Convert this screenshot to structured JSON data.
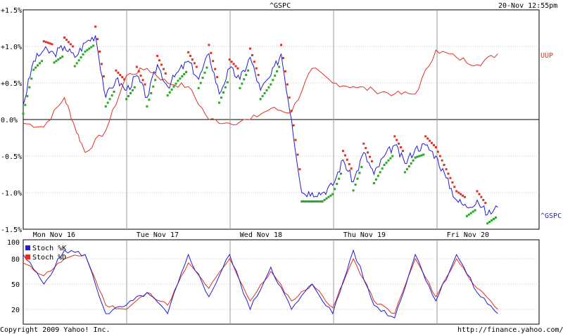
{
  "header": {
    "symbol": "^GSPC",
    "timestamp": "20-Nov 12:55pm"
  },
  "footer": {
    "copyright": "Copyright 2009 Yahoo! Inc.",
    "url": "http://finance.yahoo.com/"
  },
  "colors": {
    "gspc": "#1f1fcf",
    "uup": "#e03020",
    "psar_up": "#22aa22",
    "psar_down": "#e03020",
    "grid": "#999999",
    "zero": "#000000"
  },
  "chart_data": [
    {
      "type": "line",
      "y_unit": "%",
      "x_categories": [
        "Mon Nov 16",
        "Tue Nov 17",
        "Wed Nov 18",
        "Thu Nov 19",
        "Fri Nov 20"
      ],
      "y_ticks": [
        "+1.5%",
        "+1.0%",
        "+0.5%",
        "0.0%",
        "-0.5%",
        "-1.0%",
        "-1.5%"
      ],
      "ylim": [
        -1.5,
        1.5
      ],
      "series_labels": {
        "gspc": "^GSPC",
        "uup": "UUP"
      },
      "series": [
        {
          "name": "^GSPC",
          "x": [
            0.0,
            0.1,
            0.2,
            0.3,
            0.4,
            0.5,
            0.6,
            0.7,
            0.8,
            0.9,
            1.0,
            1.1,
            1.2,
            1.3,
            1.4,
            1.5,
            1.6,
            1.7,
            1.8,
            1.9,
            2.0,
            2.1,
            2.2,
            2.3,
            2.4,
            2.5,
            2.6,
            2.7,
            2.8,
            2.9,
            3.0,
            3.1,
            3.2,
            3.3,
            3.4,
            3.5,
            3.6,
            3.7,
            3.8,
            3.9,
            4.0,
            4.1,
            4.2,
            4.3,
            4.4,
            4.5,
            4.6
          ],
          "values": [
            0.2,
            0.8,
            0.95,
            0.9,
            1.0,
            0.85,
            1.05,
            1.15,
            0.3,
            0.55,
            0.4,
            0.6,
            0.3,
            0.75,
            0.45,
            0.65,
            0.8,
            0.55,
            0.9,
            0.35,
            0.7,
            0.55,
            0.85,
            0.4,
            0.6,
            0.9,
            0.0,
            -1.0,
            -1.0,
            -1.0,
            -0.9,
            -0.55,
            -0.85,
            -0.45,
            -0.75,
            -0.5,
            -0.35,
            -0.6,
            -0.4,
            -0.35,
            -0.5,
            -0.8,
            -1.1,
            -1.2,
            -1.1,
            -1.3,
            -1.2
          ]
        },
        {
          "name": "UUP",
          "x": [
            0.0,
            0.2,
            0.4,
            0.5,
            0.6,
            0.8,
            1.0,
            1.2,
            1.4,
            1.6,
            1.8,
            2.0,
            2.2,
            2.4,
            2.6,
            2.8,
            3.0,
            3.2,
            3.4,
            3.6,
            3.8,
            4.0,
            4.2,
            4.4,
            4.6
          ],
          "values": [
            -0.05,
            -0.1,
            0.3,
            -0.1,
            -0.45,
            -0.15,
            0.6,
            0.7,
            0.5,
            0.45,
            0.0,
            -0.05,
            0.0,
            0.15,
            0.1,
            0.7,
            0.5,
            0.45,
            0.4,
            0.35,
            0.35,
            0.95,
            0.85,
            0.75,
            0.9
          ]
        }
      ],
      "grid": true
    },
    {
      "type": "line",
      "yticks": [
        20,
        50,
        80,
        100
      ],
      "ylim": [
        0,
        100
      ],
      "legend_position": "top-left",
      "series": [
        {
          "name": "Stoch %K",
          "x": [
            0.0,
            0.2,
            0.4,
            0.6,
            0.8,
            1.0,
            1.2,
            1.4,
            1.6,
            1.8,
            2.0,
            2.2,
            2.4,
            2.6,
            2.8,
            3.0,
            3.2,
            3.4,
            3.6,
            3.8,
            4.0,
            4.2,
            4.4,
            4.6
          ],
          "values": [
            85,
            50,
            90,
            85,
            15,
            25,
            40,
            15,
            85,
            35,
            85,
            20,
            70,
            20,
            50,
            15,
            90,
            25,
            10,
            85,
            30,
            85,
            40,
            15
          ]
        },
        {
          "name": "Stoch %D",
          "x": [
            0.0,
            0.2,
            0.4,
            0.6,
            0.8,
            1.0,
            1.2,
            1.4,
            1.6,
            1.8,
            2.0,
            2.2,
            2.4,
            2.6,
            2.8,
            3.0,
            3.2,
            3.4,
            3.6,
            3.8,
            4.0,
            4.2,
            4.4,
            4.6
          ],
          "values": [
            75,
            60,
            80,
            85,
            25,
            20,
            40,
            25,
            75,
            45,
            80,
            30,
            65,
            30,
            50,
            22,
            80,
            30,
            15,
            80,
            35,
            80,
            45,
            20
          ]
        }
      ],
      "grid": true
    }
  ]
}
